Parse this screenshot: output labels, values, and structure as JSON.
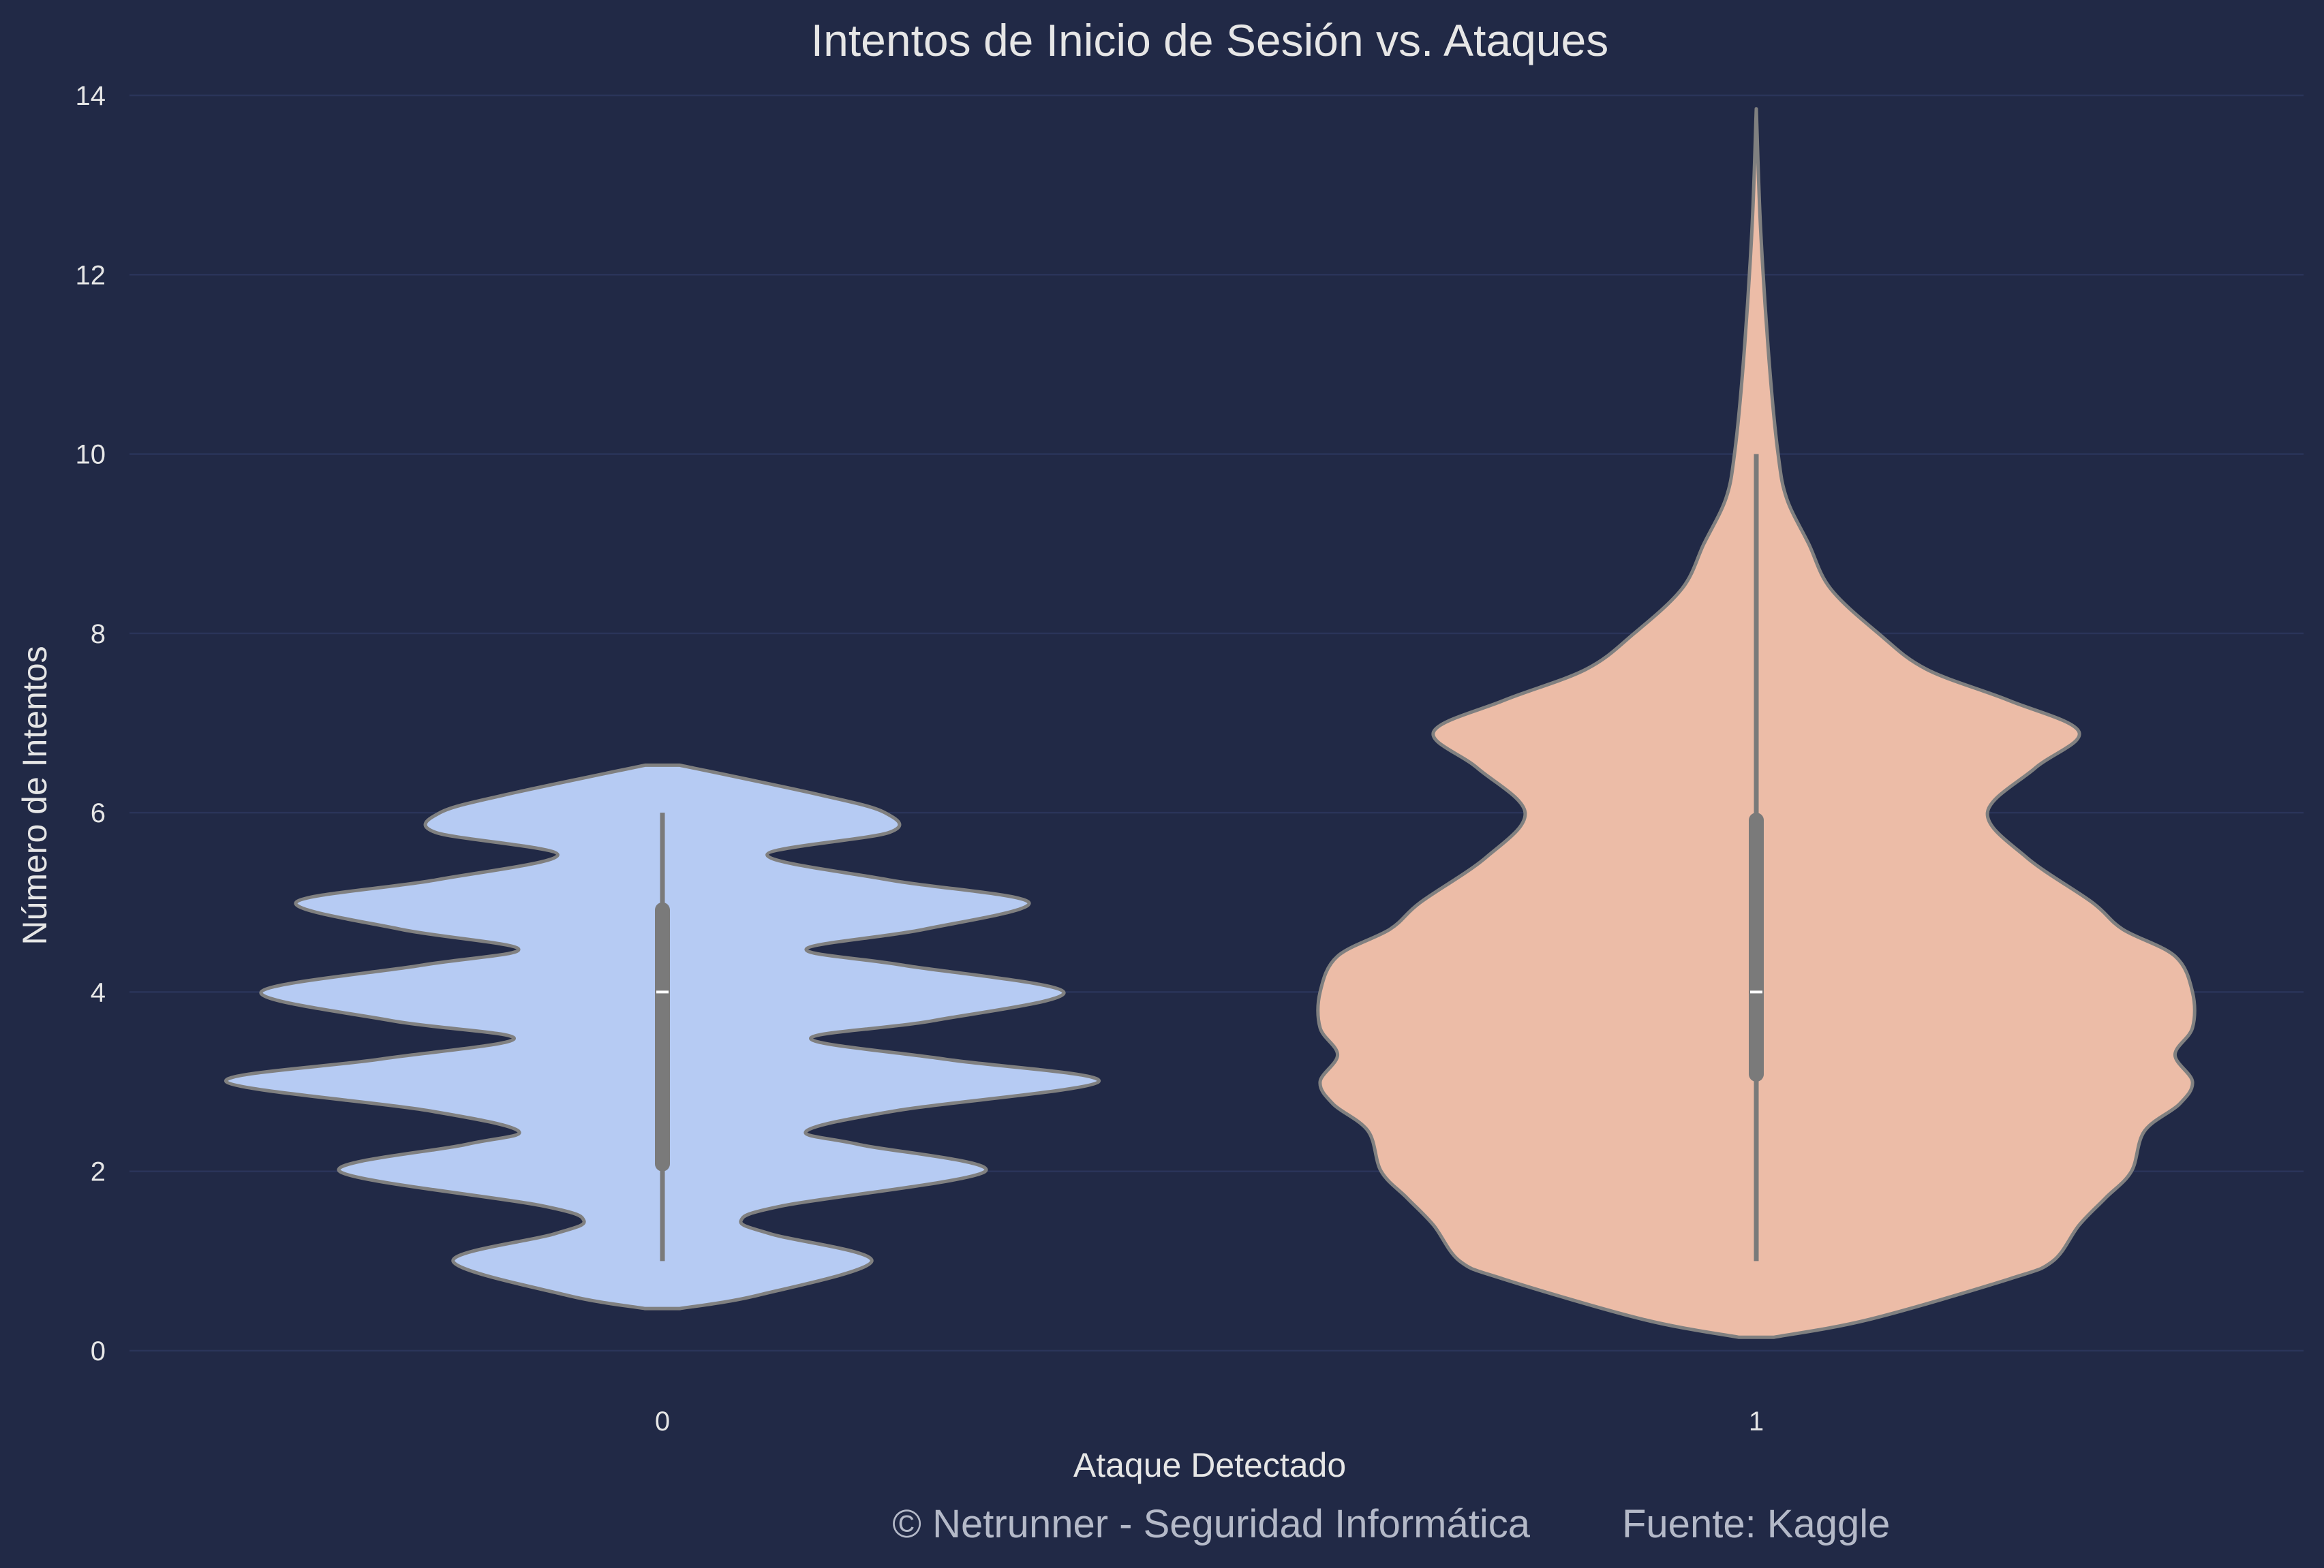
{
  "chart_data": {
    "type": "violin",
    "title": "Intentos de Inicio de Sesión vs. Ataques",
    "xlabel": "Ataque Detectado",
    "ylabel": "Número de Intentos",
    "ylim": [
      0,
      14
    ],
    "yticks": [
      "0",
      "2",
      "4",
      "6",
      "8",
      "10",
      "12",
      "14"
    ],
    "grid": true,
    "categories": [
      "0",
      "1"
    ],
    "colors": {
      "background": "#212946",
      "grid": "#2a3459",
      "outline": "#808080",
      "box": "#7a7a7a",
      "median": "#ffffff"
    },
    "violins": [
      {
        "category": "0",
        "color": "#b6cbf3",
        "stats": {
          "min": 1,
          "q1": 2,
          "median": 4,
          "q3": 5,
          "max": 6
        },
        "profile": [
          [
            0.47,
            0.04
          ],
          [
            0.62,
            0.22
          ],
          [
            1.0,
            0.48
          ],
          [
            1.3,
            0.25
          ],
          [
            1.45,
            0.18
          ],
          [
            1.62,
            0.28
          ],
          [
            2.0,
            0.74
          ],
          [
            2.3,
            0.45
          ],
          [
            2.45,
            0.33
          ],
          [
            2.68,
            0.54
          ],
          [
            3.0,
            1.0
          ],
          [
            3.25,
            0.65
          ],
          [
            3.48,
            0.34
          ],
          [
            3.68,
            0.62
          ],
          [
            4.0,
            0.92
          ],
          [
            4.3,
            0.55
          ],
          [
            4.48,
            0.33
          ],
          [
            4.7,
            0.6
          ],
          [
            5.0,
            0.84
          ],
          [
            5.25,
            0.52
          ],
          [
            5.53,
            0.24
          ],
          [
            5.78,
            0.52
          ],
          [
            6.0,
            0.51
          ],
          [
            6.2,
            0.36
          ],
          [
            6.53,
            0.04
          ]
        ]
      },
      {
        "category": "1",
        "color": "#ecbca7",
        "stats": {
          "min": 1,
          "q1": 3,
          "median": 4,
          "q3": 6,
          "max": 10
        },
        "profile": [
          [
            0.15,
            0.04
          ],
          [
            0.35,
            0.26
          ],
          [
            0.8,
            0.58
          ],
          [
            1.0,
            0.68
          ],
          [
            1.4,
            0.74
          ],
          [
            1.7,
            0.8
          ],
          [
            2.0,
            0.86
          ],
          [
            2.45,
            0.89
          ],
          [
            2.75,
            0.97
          ],
          [
            3.0,
            1.0
          ],
          [
            3.3,
            0.96
          ],
          [
            3.6,
            1.0
          ],
          [
            4.0,
            1.0
          ],
          [
            4.4,
            0.96
          ],
          [
            4.7,
            0.84
          ],
          [
            5.0,
            0.77
          ],
          [
            5.5,
            0.62
          ],
          [
            6.0,
            0.53
          ],
          [
            6.5,
            0.64
          ],
          [
            6.9,
            0.74
          ],
          [
            7.25,
            0.58
          ],
          [
            7.6,
            0.39
          ],
          [
            8.0,
            0.28
          ],
          [
            8.5,
            0.17
          ],
          [
            9.0,
            0.12
          ],
          [
            9.5,
            0.07
          ],
          [
            10.0,
            0.05
          ],
          [
            11.0,
            0.03
          ],
          [
            12.5,
            0.01
          ],
          [
            13.85,
            0.0
          ]
        ]
      }
    ]
  },
  "footer": {
    "copyright": "© Netrunner - Seguridad Informática",
    "source": "Fuente: Kaggle"
  }
}
